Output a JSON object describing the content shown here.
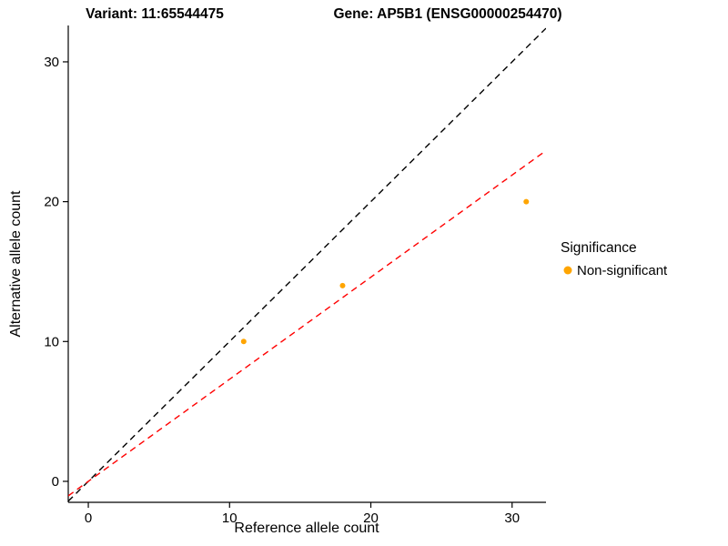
{
  "figure": {
    "background": "#ffffff"
  },
  "chart_data": {
    "type": "scatter",
    "titles": {
      "variant": "Variant: 11:65544475",
      "gene": "Gene: AP5B1 (ENSG00000254470)"
    },
    "xlabel": "Reference allele count",
    "ylabel": "Alternative allele count",
    "xlim": [
      -1.42,
      32.4
    ],
    "ylim": [
      -1.5,
      32.6
    ],
    "xticks": [
      0,
      10,
      20,
      30
    ],
    "yticks": [
      0,
      10,
      20,
      30
    ],
    "grid": false,
    "axis_color": "#000000",
    "points": [
      {
        "x": 11,
        "y": 10,
        "series": "Non-significant"
      },
      {
        "x": 18,
        "y": 14,
        "series": "Non-significant"
      },
      {
        "x": 31,
        "y": 20,
        "series": "Non-significant"
      }
    ],
    "point_color": "#FFA500",
    "point_radius": 3,
    "reference_lines": [
      {
        "name": "identity-line",
        "slope": 1,
        "intercept": 0,
        "color": "#000000",
        "style": "dashed"
      },
      {
        "name": "fit-line",
        "slope": 0.73,
        "intercept": 0,
        "color": "#FF0000",
        "style": "dashed"
      }
    ],
    "legend": {
      "title": "Significance",
      "position": "right",
      "items": [
        {
          "label": "Non-significant",
          "color": "#FFA500"
        }
      ]
    }
  }
}
